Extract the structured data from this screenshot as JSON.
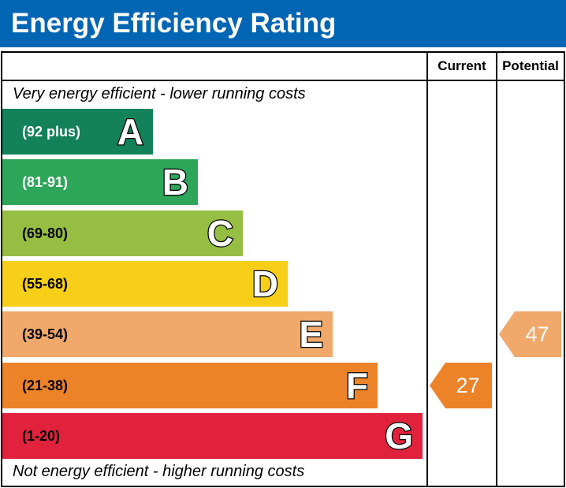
{
  "title": "Energy Efficiency Rating",
  "columns": {
    "current": "Current",
    "potential": "Potential"
  },
  "notes": {
    "top": "Very energy efficient - lower running costs",
    "bottom": "Not energy efficient - higher running costs"
  },
  "chart_data": {
    "type": "bar",
    "title": "Energy Efficiency Rating",
    "categories": [
      "A",
      "B",
      "C",
      "D",
      "E",
      "F",
      "G"
    ],
    "bands": [
      {
        "letter": "A",
        "range": "(92 plus)",
        "color": "#138159",
        "text_color": "#ffffff"
      },
      {
        "letter": "B",
        "range": "(81-91)",
        "color": "#2ea65a",
        "text_color": "#ffffff"
      },
      {
        "letter": "C",
        "range": "(69-80)",
        "color": "#95be42",
        "text_color": "#000000"
      },
      {
        "letter": "D",
        "range": "(55-68)",
        "color": "#f7cf18",
        "text_color": "#000000"
      },
      {
        "letter": "E",
        "range": "(39-54)",
        "color": "#f1a96b",
        "text_color": "#000000"
      },
      {
        "letter": "F",
        "range": "(21-38)",
        "color": "#ed8329",
        "text_color": "#000000"
      },
      {
        "letter": "G",
        "range": "(1-20)",
        "color": "#e1223c",
        "text_color": "#000000"
      }
    ],
    "current": {
      "value": 27,
      "band": "F",
      "color": "#ed8329"
    },
    "potential": {
      "value": 47,
      "band": "E",
      "color": "#f1a96b"
    }
  }
}
